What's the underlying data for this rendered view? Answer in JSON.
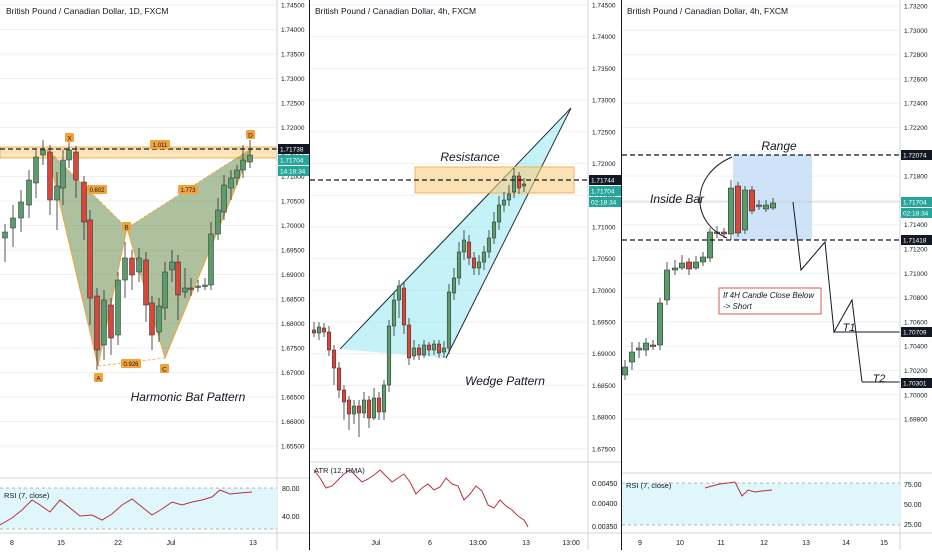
{
  "panels": [
    {
      "id": "p1",
      "header": "British Pound / Canadian Dollar, 1D, FXCM",
      "price_ticks": [
        "1.74500",
        "1.74000",
        "1.73500",
        "1.73000",
        "1.72500",
        "1.72000",
        "1.71500",
        "1.71000",
        "1.70500",
        "1.70000",
        "1.69500",
        "1.69000",
        "1.68500",
        "1.68000",
        "1.67500",
        "1.67000",
        "1.66500",
        "1.66000",
        "1.65500"
      ],
      "price_tags": [
        {
          "text": "1.71738",
          "style": "dark"
        },
        {
          "text": "1.71704",
          "style": "green"
        },
        {
          "text": "14:18:34",
          "style": "green"
        }
      ],
      "x_ticks": [
        "8",
        "15",
        "22",
        "Jul",
        "13"
      ],
      "title_label": "Harmonic Bat Pattern",
      "pattern_points": [
        "X",
        "A",
        "B",
        "C",
        "D"
      ],
      "ratio_labels": [
        "1.011",
        "0.602",
        "1.773",
        "0.926"
      ],
      "indicator": {
        "label": "RSI (7, close)",
        "ticks": [
          "80.00",
          "40.00"
        ]
      }
    },
    {
      "id": "p2",
      "header": "British Pound / Canadian Dollar, 4h, FXCM",
      "price_ticks": [
        "1.74500",
        "1.74000",
        "1.73500",
        "1.73000",
        "1.72500",
        "1.72000",
        "1.71500",
        "1.71000",
        "1.70500",
        "1.70000",
        "1.69500",
        "1.69000",
        "1.68500",
        "1.68000",
        "1.67500"
      ],
      "price_tags": [
        {
          "text": "1.71744",
          "style": "dark"
        },
        {
          "text": "1.71704",
          "style": "green"
        },
        {
          "text": "02:18:34",
          "style": "green"
        }
      ],
      "x_ticks": [
        "Jul",
        "6",
        "13:00",
        "13",
        "13:00"
      ],
      "resistance_label": "Resistance",
      "title_label": "Wedge Pattern",
      "indicator": {
        "label": "ATR (12, RMA)",
        "ticks": [
          "0.00450",
          "0.00400",
          "0.00350"
        ]
      }
    },
    {
      "id": "p3",
      "header": "British Pound / Canadian Dollar, 4h, FXCM",
      "price_ticks": [
        "1.73200",
        "1.73000",
        "1.72800",
        "1.72600",
        "1.72400",
        "1.72200",
        "1.72000",
        "1.71800",
        "1.71600",
        "1.71400",
        "1.71200",
        "1.71000",
        "1.70800",
        "1.70600",
        "1.70400",
        "1.70200",
        "1.70000",
        "1.69800"
      ],
      "price_tags": [
        {
          "text": "1.72074",
          "style": "dark"
        },
        {
          "text": "1.71704",
          "style": "green"
        },
        {
          "text": "02:18:34",
          "style": "green"
        },
        {
          "text": "1.71418",
          "style": "dark"
        },
        {
          "text": "1.70709",
          "style": "dark"
        },
        {
          "text": "1.70301",
          "style": "dark"
        }
      ],
      "x_ticks": [
        "9",
        "10",
        "11",
        "12",
        "13",
        "14",
        "15"
      ],
      "range_label": "Range",
      "inside_bar_label": "Inside Bar",
      "note_lines": [
        "If 4H Candle Close Below",
        "-> Short"
      ],
      "target_labels": [
        "T1",
        "T2"
      ],
      "indicator": {
        "label": "RSI (7, close)",
        "ticks": [
          "75.00",
          "50.00",
          "25.00"
        ]
      }
    }
  ],
  "colors": {
    "bull": "#5b9c6c",
    "bear": "#d6473c",
    "tag_dark": "#131722",
    "tag_green": "#26a69a",
    "pattern_fill": "#6b8e4e",
    "pattern_point": "#f2a33a",
    "wedge_fill": "#7fe3ea",
    "resistance_fill": "#f8cf83",
    "range_fill": "#b9d7f3",
    "indicator_bg": "#dff7fa",
    "indicator_line": "#b9313c",
    "grid": "#eef0f3"
  }
}
